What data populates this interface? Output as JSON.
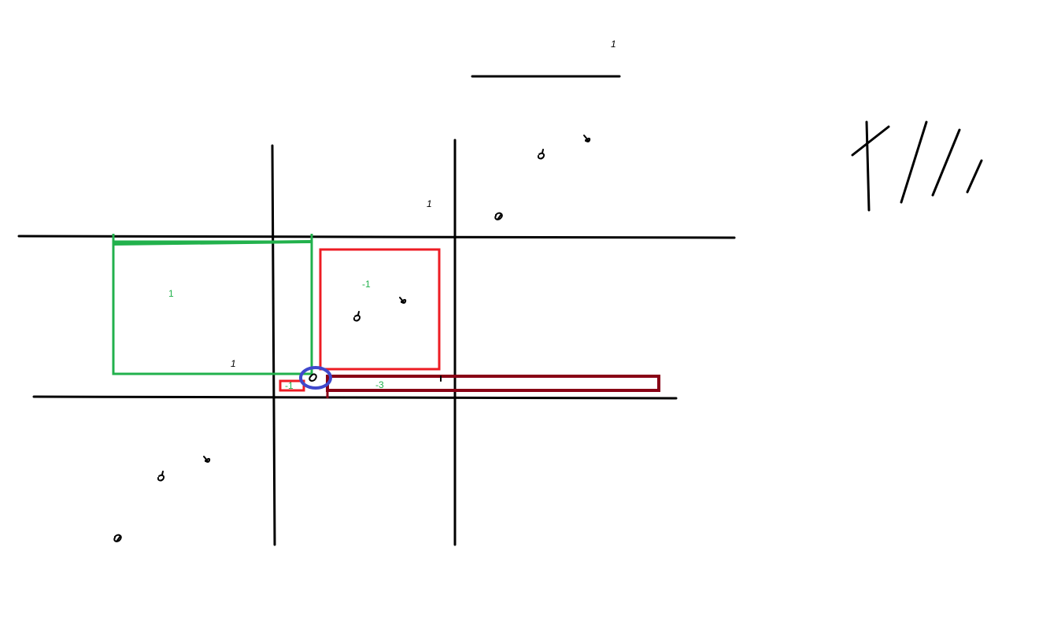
{
  "colors": {
    "ink": "#000000",
    "green": "#22b14c",
    "red": "#ed1c24",
    "dark_red": "#880015",
    "blue": "#3f48cc",
    "label_green": "#22b14c"
  },
  "labels": {
    "top_right_one": "1",
    "green_region": "1",
    "red_region": "-1",
    "small_red_region": "-1",
    "dark_red_region": "-3",
    "green_region_one": "1",
    "upper_right_one": "1"
  }
}
